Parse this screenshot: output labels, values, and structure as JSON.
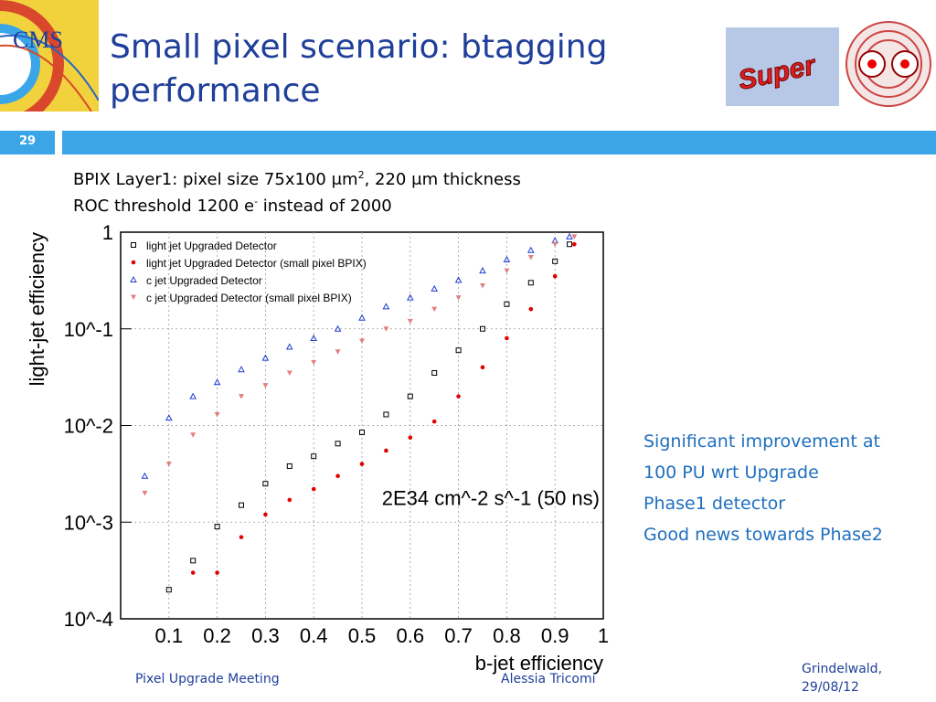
{
  "slide": {
    "number": "29",
    "title_line1": "Small pixel scenario: btagging",
    "title_line2": "performance",
    "logo_text": "CMS",
    "banner_text": "Super"
  },
  "text": {
    "line1_a": "BPIX Layer1: pixel size 75x100 ",
    "line1_mu": "μ",
    "line1_b": "m",
    "line1_sup": "2",
    "line1_c": ", 220 ",
    "line1_mu2": "μ",
    "line1_d": "m thickness",
    "line2_a": "ROC threshold 1200 e",
    "line2_sup": "-",
    "line2_b": "  instead of 2000"
  },
  "notes": [
    "Significant improvement at",
    "100 PU wrt Upgrade",
    "Phase1 detector",
    "Good news towards Phase2"
  ],
  "footer": {
    "left": "Pixel Upgrade Meeting",
    "middle": "Alessia Tricomi",
    "right_line1": "Grindelwald,",
    "right_line2": "29/08/12"
  },
  "chart_data": {
    "type": "scatter",
    "xlabel": "b-jet efficiency",
    "ylabel": "light-jet efficiency",
    "annotation": "2E34 cm^-2 s^-1 (50 ns)",
    "x_scale": "linear",
    "y_scale": "log",
    "xlim": [
      0,
      1
    ],
    "ylim": [
      0.0001,
      1
    ],
    "x_ticks": [
      "0.1",
      "0.2",
      "0.3",
      "0.4",
      "0.5",
      "0.6",
      "0.7",
      "0.8",
      "0.9",
      "1"
    ],
    "y_ticks": [
      "1",
      "10^-1",
      "10^-2",
      "10^-3",
      "10^-4"
    ],
    "grid": true,
    "legend_position": "top-left",
    "series": [
      {
        "name": "light jet Upgraded Detector",
        "color": "#000000",
        "marker": "open-square",
        "x": [
          0.1,
          0.15,
          0.2,
          0.25,
          0.3,
          0.35,
          0.4,
          0.45,
          0.5,
          0.55,
          0.6,
          0.65,
          0.7,
          0.75,
          0.8,
          0.85,
          0.9,
          0.93
        ],
        "y": [
          0.0002,
          0.0004,
          0.0009,
          0.0015,
          0.0025,
          0.0038,
          0.0048,
          0.0065,
          0.0085,
          0.013,
          0.02,
          0.035,
          0.06,
          0.1,
          0.18,
          0.3,
          0.5,
          0.75
        ]
      },
      {
        "name": "light jet Upgraded Detector (small pixel BPIX)",
        "color": "#e00000",
        "marker": "dot",
        "x": [
          0.15,
          0.2,
          0.25,
          0.3,
          0.35,
          0.4,
          0.45,
          0.5,
          0.55,
          0.6,
          0.65,
          0.7,
          0.75,
          0.8,
          0.85,
          0.9,
          0.94
        ],
        "y": [
          0.0003,
          0.0003,
          0.0007,
          0.0012,
          0.0017,
          0.0022,
          0.003,
          0.004,
          0.0055,
          0.0075,
          0.011,
          0.02,
          0.04,
          0.08,
          0.16,
          0.35,
          0.75
        ]
      },
      {
        "name": "c jet Upgraded Detector",
        "color": "#1f3fcf",
        "marker": "open-triangle",
        "x": [
          0.05,
          0.1,
          0.15,
          0.2,
          0.25,
          0.3,
          0.35,
          0.4,
          0.45,
          0.5,
          0.55,
          0.6,
          0.65,
          0.7,
          0.75,
          0.8,
          0.85,
          0.9,
          0.93
        ],
        "y": [
          0.003,
          0.012,
          0.02,
          0.028,
          0.038,
          0.05,
          0.065,
          0.08,
          0.1,
          0.13,
          0.17,
          0.21,
          0.26,
          0.32,
          0.4,
          0.52,
          0.65,
          0.82,
          0.9
        ]
      },
      {
        "name": "c jet Upgraded Detector (small pixel BPIX)",
        "color": "#e08080",
        "marker": "triangle-down",
        "x": [
          0.05,
          0.1,
          0.15,
          0.2,
          0.25,
          0.3,
          0.35,
          0.4,
          0.45,
          0.5,
          0.55,
          0.6,
          0.65,
          0.7,
          0.75,
          0.8,
          0.85,
          0.9,
          0.94
        ],
        "y": [
          0.002,
          0.004,
          0.008,
          0.013,
          0.02,
          0.026,
          0.035,
          0.045,
          0.058,
          0.075,
          0.1,
          0.12,
          0.16,
          0.21,
          0.28,
          0.4,
          0.55,
          0.75,
          0.9
        ]
      }
    ]
  }
}
